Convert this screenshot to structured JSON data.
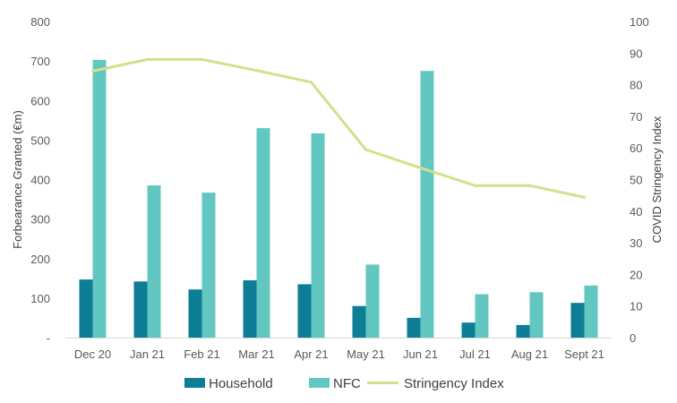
{
  "chart_data": {
    "type": "bar",
    "categories": [
      "Dec 20",
      "Jan 21",
      "Feb 21",
      "Mar 21",
      "Apr 21",
      "May 21",
      "Jun 21",
      "Jul 21",
      "Aug 21",
      "Sept 21"
    ],
    "series": [
      {
        "name": "Household",
        "type": "bar",
        "axis": "left",
        "color": "#0E7E96",
        "values": [
          147,
          142,
          122,
          145,
          135,
          80,
          50,
          38,
          32,
          88
        ]
      },
      {
        "name": "NFC",
        "type": "bar",
        "axis": "left",
        "color": "#62C7C1",
        "values": [
          703,
          385,
          367,
          530,
          517,
          185,
          675,
          110,
          115,
          132
        ]
      },
      {
        "name": "Stringency Index",
        "type": "line",
        "axis": "right",
        "color": "#D2E08A",
        "values": [
          84.3,
          88,
          88,
          84.5,
          80.8,
          59.5,
          53.7,
          48.1,
          48.1,
          44.4
        ]
      }
    ],
    "ylabel": "Forbearance Granted (€m)",
    "y2label": "COVID Stringency Index",
    "ylim": [
      0,
      800
    ],
    "y2lim": [
      0,
      100
    ],
    "yticks": [
      "-",
      "100",
      "200",
      "300",
      "400",
      "500",
      "600",
      "700",
      "800"
    ],
    "y2ticks": [
      "0",
      "10",
      "20",
      "30",
      "40",
      "50",
      "60",
      "70",
      "80",
      "90",
      "100"
    ],
    "grid": false,
    "legend": "bottom"
  }
}
